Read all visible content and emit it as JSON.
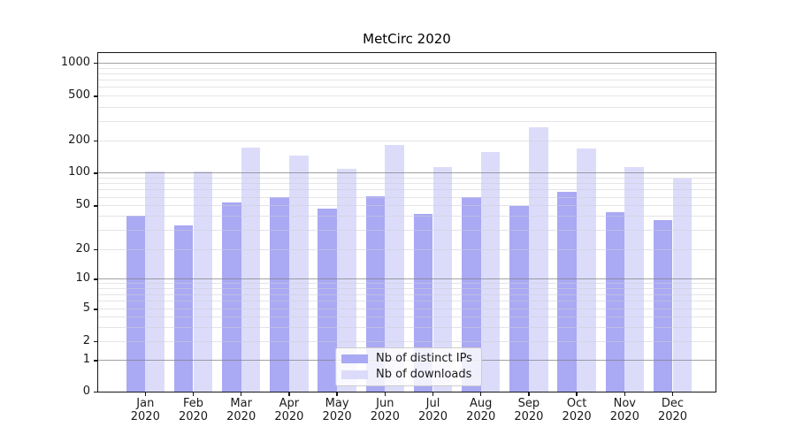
{
  "figure": {
    "title": "MetCirc 2020",
    "background": "#ffffff"
  },
  "chart_data": {
    "type": "bar",
    "title": "MetCirc 2020",
    "categories": [
      "Jan 2020",
      "Feb 2020",
      "Mar 2020",
      "Apr 2020",
      "May 2020",
      "Jun 2020",
      "Jul 2020",
      "Aug 2020",
      "Sep 2020",
      "Oct 2020",
      "Nov 2020",
      "Dec 2020"
    ],
    "series": [
      {
        "name": "Nb of distinct IPs",
        "color": "#a9a9f4",
        "values": [
          40,
          33,
          53,
          59,
          47,
          61,
          42,
          59,
          49,
          66,
          43,
          37
        ]
      },
      {
        "name": "Nb of downloads",
        "color": "#dcdcfa",
        "values": [
          102,
          102,
          172,
          145,
          109,
          181,
          112,
          156,
          262,
          168,
          113,
          89
        ]
      }
    ],
    "xlabel": "",
    "ylabel": "",
    "yscale": "log-like with linear zero segment",
    "ytick_labels": [
      "0",
      "1",
      "2",
      "5",
      "10",
      "20",
      "50",
      "100",
      "200",
      "500",
      "1000"
    ],
    "ytick_values": [
      0,
      1,
      2,
      5,
      10,
      20,
      50,
      100,
      200,
      500,
      1000
    ],
    "ylim": [
      0,
      1200
    ],
    "grid": "horizontal; gray major lines at 1,10,100,1000; faint minor log lines",
    "legend_position": "lower center inside plot"
  },
  "legend": {
    "items": [
      {
        "label": "Nb of distinct IPs"
      },
      {
        "label": "Nb of downloads"
      }
    ]
  },
  "colors": {
    "bar_ips": "#a9a9f4",
    "bar_downloads": "#dcdcfa",
    "major_grid": "#828287",
    "minor_grid": "#d5d5dc",
    "spine": "#15151a",
    "legend_border": "#cccccc",
    "text": "#1a1a1a"
  }
}
